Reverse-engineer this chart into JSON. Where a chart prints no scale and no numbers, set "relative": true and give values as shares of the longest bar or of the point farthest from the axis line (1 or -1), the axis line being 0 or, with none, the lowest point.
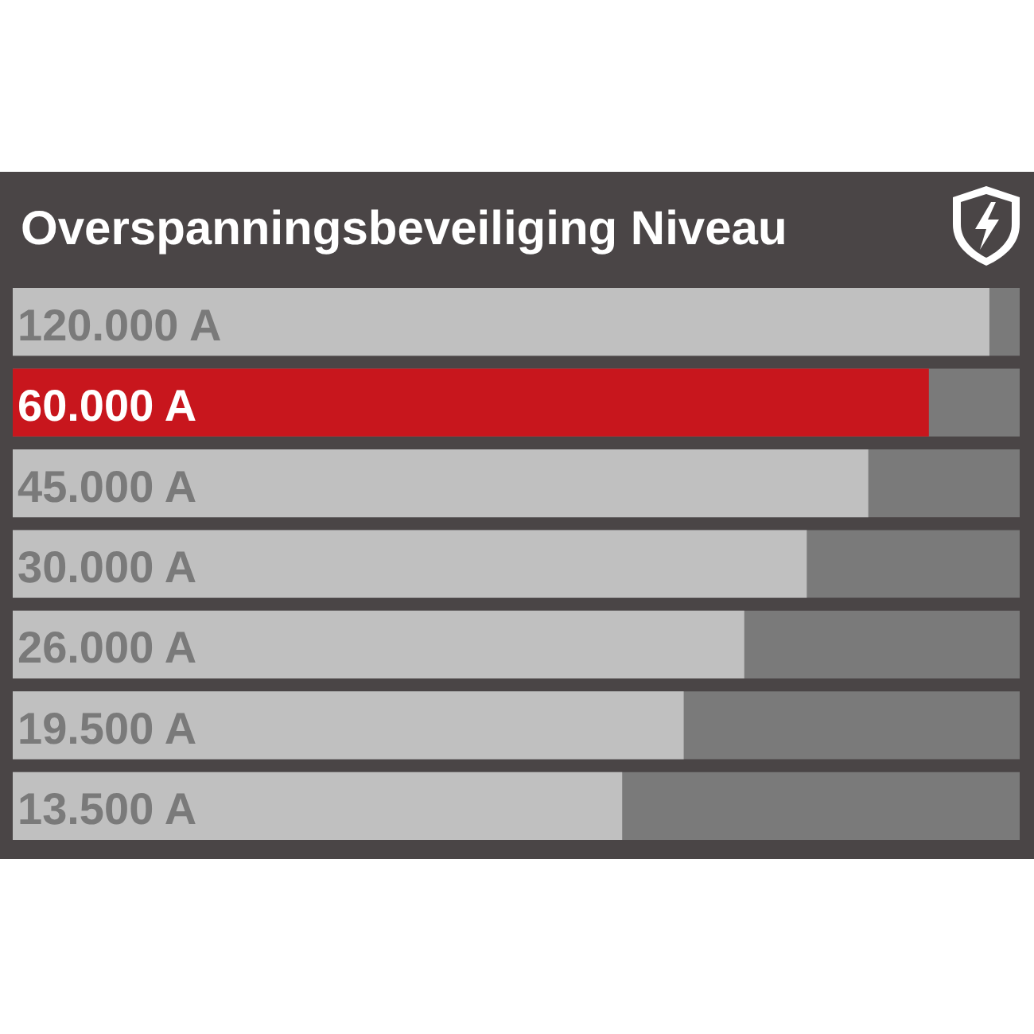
{
  "chart_data": {
    "type": "bar",
    "orientation": "horizontal",
    "relative": true,
    "title": "Overspanningsbeveiliging Niveau",
    "categories": [
      "120.000 A",
      "60.000 A",
      "45.000 A",
      "30.000 A",
      "26.000 A",
      "19.500 A",
      "13.500 A"
    ],
    "values": [
      1,
      0.938,
      0.876,
      0.813,
      0.749,
      0.687,
      0.624
    ],
    "colors": [
      "#c0c0c0",
      "#c8161d",
      "#c0c0c0",
      "#c0c0c0",
      "#c0c0c0",
      "#c0c0c0",
      "#c0c0c0"
    ]
  }
}
